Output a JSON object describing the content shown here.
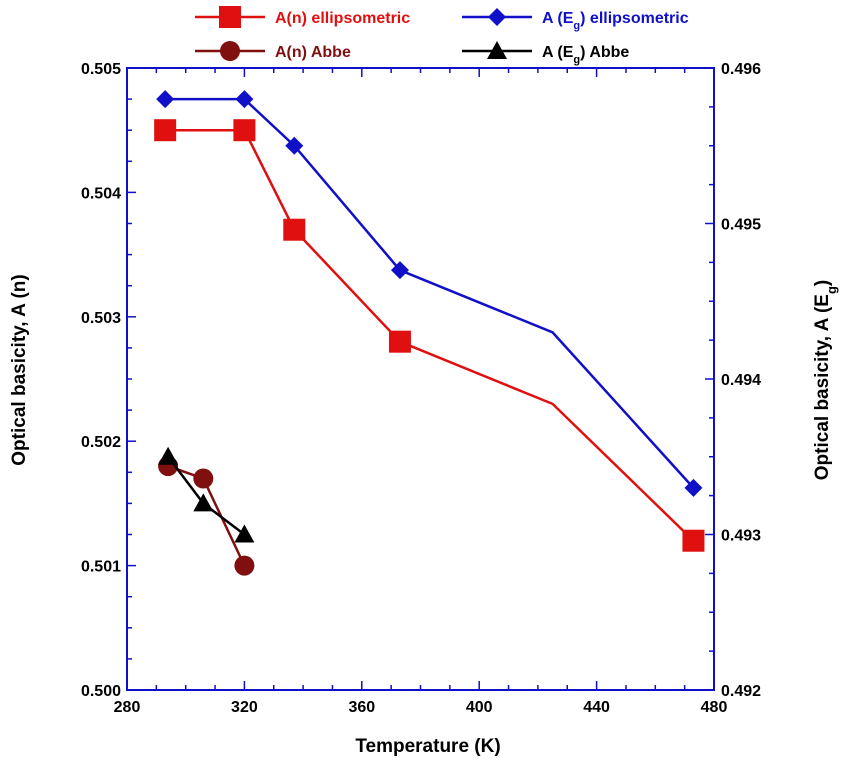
{
  "chart_data": {
    "type": "line",
    "xlabel": "Temperature (K)",
    "ylabel_left": "Optical basicity, A (n)",
    "ylabel_right": "Optical basicity,  A (E",
    "ylabel_right_sub": "g",
    "ylabel_right_tail": ")",
    "xlim": [
      280,
      480
    ],
    "xticks": [
      280,
      320,
      360,
      400,
      440,
      480
    ],
    "ylim_left": [
      0.5,
      0.505
    ],
    "yticks_left": [
      "0.500",
      "0.501",
      "0.502",
      "0.503",
      "0.504",
      "0.505"
    ],
    "ylim_right": [
      0.492,
      0.496
    ],
    "yticks_right": [
      "0.492",
      "0.493",
      "0.494",
      "0.495",
      "0.496"
    ],
    "legend_placement": "top",
    "series": [
      {
        "name": "A(n)  ellipsometric",
        "axis": "left",
        "color": "#e01010",
        "marker": "square",
        "x": [
          293,
          320,
          337,
          373,
          425,
          473
        ],
        "y": [
          0.5045,
          0.5045,
          0.5037,
          0.5028,
          0.5023,
          0.5012
        ],
        "markers": [
          true,
          true,
          true,
          true,
          false,
          true
        ]
      },
      {
        "name": "A (E",
        "name_sub": "g",
        "name_tail": ")  ellipsometric",
        "axis": "right",
        "color": "#1010c8",
        "marker": "diamond",
        "x": [
          293,
          320,
          337,
          373,
          425,
          473
        ],
        "y": [
          0.4958,
          0.4958,
          0.4955,
          0.4947,
          0.4943,
          0.4933
        ],
        "markers": [
          true,
          true,
          true,
          true,
          false,
          true
        ]
      },
      {
        "name": "A(n)  Abbe",
        "axis": "left",
        "color": "#801010",
        "marker": "circle",
        "x": [
          294,
          306,
          320
        ],
        "y": [
          0.5018,
          0.5017,
          0.501
        ],
        "markers": [
          true,
          true,
          true
        ]
      },
      {
        "name": "A (E",
        "name_sub": "g",
        "name_tail": ")  Abbe",
        "axis": "right",
        "color": "#000000",
        "marker": "triangle",
        "x": [
          294,
          306,
          320
        ],
        "y": [
          0.4935,
          0.4932,
          0.493
        ],
        "markers": [
          true,
          true,
          true
        ]
      }
    ]
  }
}
